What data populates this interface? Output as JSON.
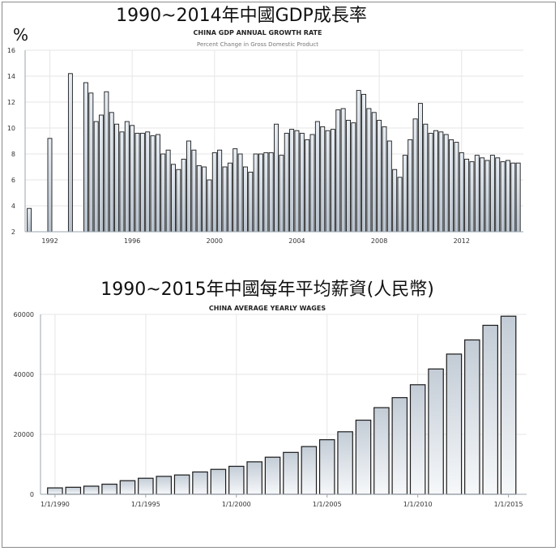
{
  "chart_data": [
    {
      "type": "bar",
      "title": "1990~2014年中國GDP成長率",
      "subtitle": "CHINA GDP ANNUAL GROWTH RATE",
      "caption": "Percent Change in Gross Domestic Product",
      "unit": "%",
      "ylim": [
        2,
        16
      ],
      "y_ticks": [
        2,
        4,
        6,
        8,
        10,
        12,
        14,
        16
      ],
      "x_ticks": [
        "1992",
        "1996",
        "2000",
        "2004",
        "2008",
        "2012"
      ],
      "x_tick_values": [
        1992,
        1996,
        2000,
        2004,
        2008,
        2012
      ],
      "xlim": [
        1990.8,
        2015.0
      ],
      "grid": true,
      "x": [
        1991.0,
        1992.0,
        1993.0,
        1993.75,
        1994.0,
        1994.25,
        1994.5,
        1994.75,
        1995.0,
        1995.25,
        1995.5,
        1995.75,
        1996.0,
        1996.25,
        1996.5,
        1996.75,
        1997.0,
        1997.25,
        1997.5,
        1997.75,
        1998.0,
        1998.25,
        1998.5,
        1998.75,
        1999.0,
        1999.25,
        1999.5,
        1999.75,
        2000.0,
        2000.25,
        2000.5,
        2000.75,
        2001.0,
        2001.25,
        2001.5,
        2001.75,
        2002.0,
        2002.25,
        2002.5,
        2002.75,
        2003.0,
        2003.25,
        2003.5,
        2003.75,
        2004.0,
        2004.25,
        2004.5,
        2004.75,
        2005.0,
        2005.25,
        2005.5,
        2005.75,
        2006.0,
        2006.25,
        2006.5,
        2006.75,
        2007.0,
        2007.25,
        2007.5,
        2007.75,
        2008.0,
        2008.25,
        2008.5,
        2008.75,
        2009.0,
        2009.25,
        2009.5,
        2009.75,
        2010.0,
        2010.25,
        2010.5,
        2010.75,
        2011.0,
        2011.25,
        2011.5,
        2011.75,
        2012.0,
        2012.25,
        2012.5,
        2012.75,
        2013.0,
        2013.25,
        2013.5,
        2013.75,
        2014.0,
        2014.25,
        2014.5,
        2014.75
      ],
      "values": [
        3.8,
        9.2,
        14.2,
        13.5,
        12.7,
        10.5,
        11.0,
        12.8,
        11.2,
        10.3,
        9.7,
        10.5,
        10.2,
        9.6,
        9.6,
        9.7,
        9.4,
        9.5,
        8.0,
        8.3,
        7.2,
        6.8,
        7.6,
        9.0,
        8.3,
        7.1,
        7.0,
        6.0,
        8.1,
        8.3,
        7.0,
        7.3,
        8.4,
        8.0,
        7.0,
        6.6,
        8.0,
        8.0,
        8.1,
        8.1,
        10.3,
        7.9,
        9.6,
        9.9,
        9.8,
        9.6,
        9.1,
        9.5,
        10.5,
        10.1,
        9.8,
        9.9,
        11.4,
        11.5,
        10.6,
        10.4,
        12.9,
        12.6,
        11.5,
        11.2,
        10.6,
        10.1,
        9.0,
        6.8,
        6.2,
        7.9,
        9.1,
        10.7,
        11.9,
        10.3,
        9.6,
        9.8,
        9.7,
        9.5,
        9.1,
        8.9,
        8.1,
        7.6,
        7.4,
        7.9,
        7.7,
        7.5,
        7.9,
        7.7,
        7.4,
        7.5,
        7.3,
        7.3
      ]
    },
    {
      "type": "bar",
      "title": "1990~2015年中國每年平均薪資(人民幣)",
      "subtitle": "CHINA AVERAGE YEARLY WAGES",
      "ylim": [
        0,
        60000
      ],
      "y_ticks": [
        0,
        20000,
        40000,
        60000
      ],
      "x_ticks": [
        "1/1/1990",
        "1/1/1995",
        "1/1/2000",
        "1/1/2005",
        "1/1/2010",
        "1/1/2015"
      ],
      "x_tick_values": [
        1990,
        1995,
        2000,
        2005,
        2010,
        2015
      ],
      "xlim": [
        1989.2,
        2016.0
      ],
      "grid": true,
      "categories": [
        1990,
        1991,
        1992,
        1993,
        1994,
        1995,
        1996,
        1997,
        1998,
        1999,
        2000,
        2001,
        2002,
        2003,
        2004,
        2005,
        2006,
        2007,
        2008,
        2009,
        2010,
        2011,
        2012,
        2013,
        2014,
        2015
      ],
      "values": [
        2140,
        2340,
        2711,
        3371,
        4538,
        5348,
        5980,
        6444,
        7446,
        8319,
        9333,
        10834,
        12373,
        13969,
        15920,
        18200,
        20856,
        24721,
        28898,
        32244,
        36539,
        41799,
        46769,
        51483,
        56360,
        62029
      ]
    }
  ]
}
